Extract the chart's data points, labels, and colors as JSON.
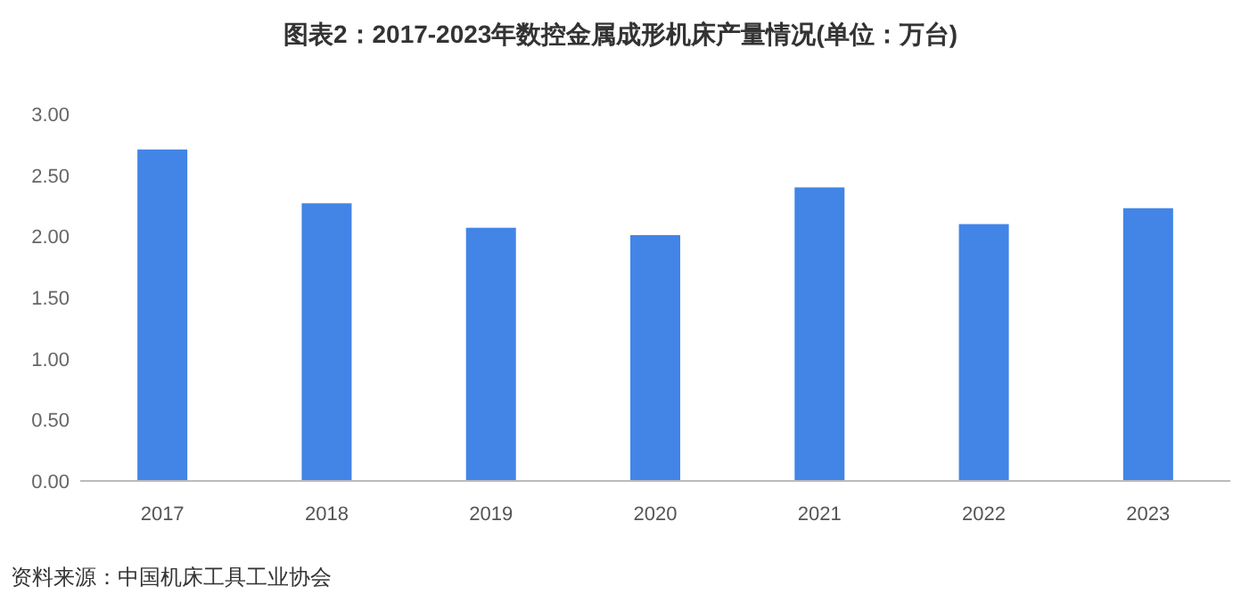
{
  "chart_data": {
    "type": "bar",
    "title": "图表2：2017-2023年数控金属成形机床产量情况(单位：万台)",
    "categories": [
      "2017",
      "2018",
      "2019",
      "2020",
      "2021",
      "2022",
      "2023"
    ],
    "values": [
      2.71,
      2.27,
      2.07,
      2.01,
      2.4,
      2.1,
      2.23
    ],
    "color": "#4285e6",
    "ylim": [
      0,
      3
    ],
    "yticks": [
      {
        "value": 0,
        "label": "0.00"
      },
      {
        "value": 0.5,
        "label": "0.50"
      },
      {
        "value": 1,
        "label": "1.00"
      },
      {
        "value": 1.5,
        "label": "1.50"
      },
      {
        "value": 2,
        "label": "2.00"
      },
      {
        "value": 2.5,
        "label": "2.50"
      },
      {
        "value": 3,
        "label": "3.00"
      }
    ],
    "annotations": [
      "资料来源：中国机床工具工业协会"
    ]
  }
}
